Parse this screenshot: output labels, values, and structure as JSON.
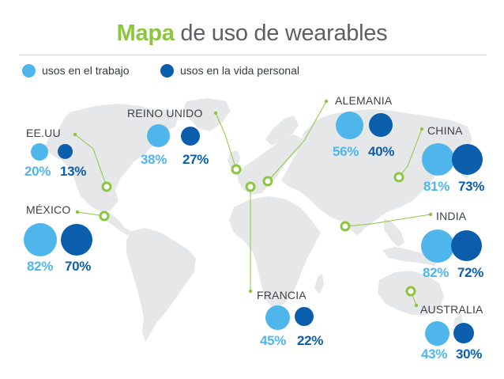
{
  "title": {
    "accent": "Mapa",
    "rest": "de uso de wearables"
  },
  "legend": {
    "work_label": "usos en el trabajo",
    "personal_label": "usos en la vida personal"
  },
  "colors": {
    "work": "#4fb6ec",
    "personal": "#0a5eab",
    "connector": "#8cc63f",
    "land": "#e6e7e8"
  },
  "countries": [
    {
      "name": "EE.UU",
      "work_pct": "20%",
      "personal_pct": "13%",
      "work": 20,
      "personal": 13
    },
    {
      "name": "MÉXICO",
      "work_pct": "82%",
      "personal_pct": "70%",
      "work": 82,
      "personal": 70
    },
    {
      "name": "REINO UNIDO",
      "work_pct": "38%",
      "personal_pct": "27%",
      "work": 38,
      "personal": 27
    },
    {
      "name": "FRANCIA",
      "work_pct": "45%",
      "personal_pct": "22%",
      "work": 45,
      "personal": 22
    },
    {
      "name": "ALEMANIA",
      "work_pct": "56%",
      "personal_pct": "40%",
      "work": 56,
      "personal": 40
    },
    {
      "name": "CHINA",
      "work_pct": "81%",
      "personal_pct": "73%",
      "work": 81,
      "personal": 73
    },
    {
      "name": "INDIA",
      "work_pct": "82%",
      "personal_pct": "72%",
      "work": 82,
      "personal": 72
    },
    {
      "name": "AUSTRALIA",
      "work_pct": "43%",
      "personal_pct": "30%",
      "work": 43,
      "personal": 30
    }
  ]
}
